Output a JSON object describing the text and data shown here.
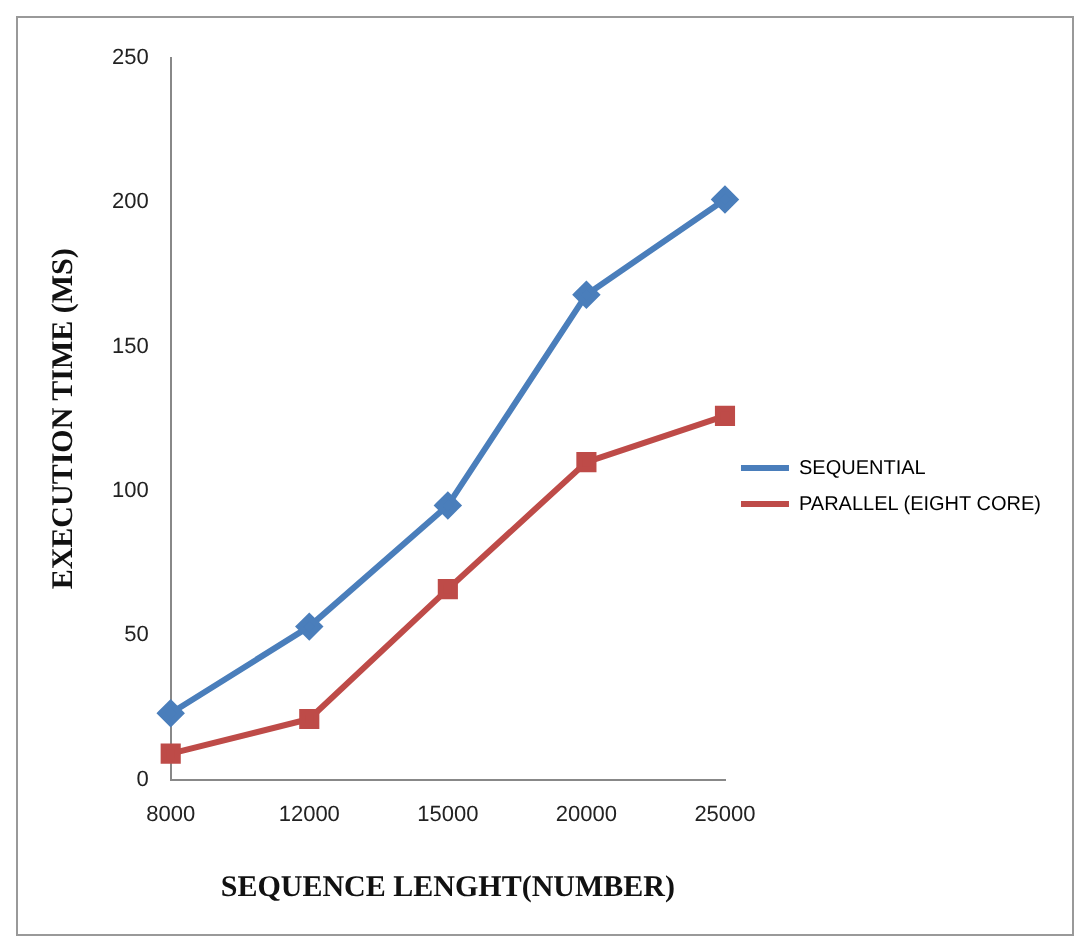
{
  "chart_data": {
    "type": "line",
    "xlabel": "SEQUENCE LENGHT(NUMBER)",
    "ylabel": "EXECUTION TIME (MS)",
    "categories": [
      "8000",
      "12000",
      "15000",
      "20000",
      "25000"
    ],
    "series": [
      {
        "name": "SEQUENTIAL",
        "color": "#4a7ebb",
        "marker": "diamond",
        "values": [
          23,
          53,
          95,
          168,
          201
        ]
      },
      {
        "name": "PARALLEL (EIGHT CORE)",
        "color": "#be4b48",
        "marker": "square",
        "values": [
          9,
          21,
          66,
          110,
          126
        ]
      }
    ],
    "ylim": [
      0,
      250
    ],
    "yticks": [
      0,
      50,
      100,
      150,
      200,
      250
    ],
    "grid": false,
    "legend": "right",
    "line_style": "solid"
  }
}
